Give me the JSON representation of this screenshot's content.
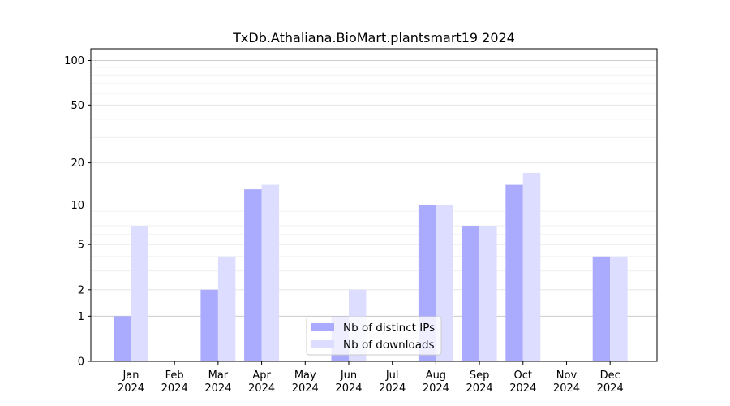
{
  "chart_data": {
    "type": "bar",
    "title": "TxDb.Athaliana.BioMart.plantsmart19 2024",
    "xlabel": "",
    "ylabel": "",
    "categories": [
      "Jan\n2024",
      "Feb\n2024",
      "Mar\n2024",
      "Apr\n2024",
      "May\n2024",
      "Jun\n2024",
      "Jul\n2024",
      "Aug\n2024",
      "Sep\n2024",
      "Oct\n2024",
      "Nov\n2024",
      "Dec\n2024"
    ],
    "y_scale": "log1p",
    "ylim": [
      0,
      120
    ],
    "y_ticks": [
      0,
      1,
      2,
      5,
      10,
      20,
      50,
      100
    ],
    "series": [
      {
        "name": "Nb of distinct IPs",
        "color": "#aaaaff",
        "values": [
          1,
          0,
          2,
          13,
          0,
          1,
          0,
          10,
          7,
          14,
          0,
          4
        ]
      },
      {
        "name": "Nb of downloads",
        "color": "#ddddff",
        "values": [
          7,
          0,
          4,
          14,
          0,
          2,
          0,
          10,
          7,
          17,
          0,
          4
        ]
      }
    ],
    "grid": true,
    "legend_position": "lower-center"
  }
}
